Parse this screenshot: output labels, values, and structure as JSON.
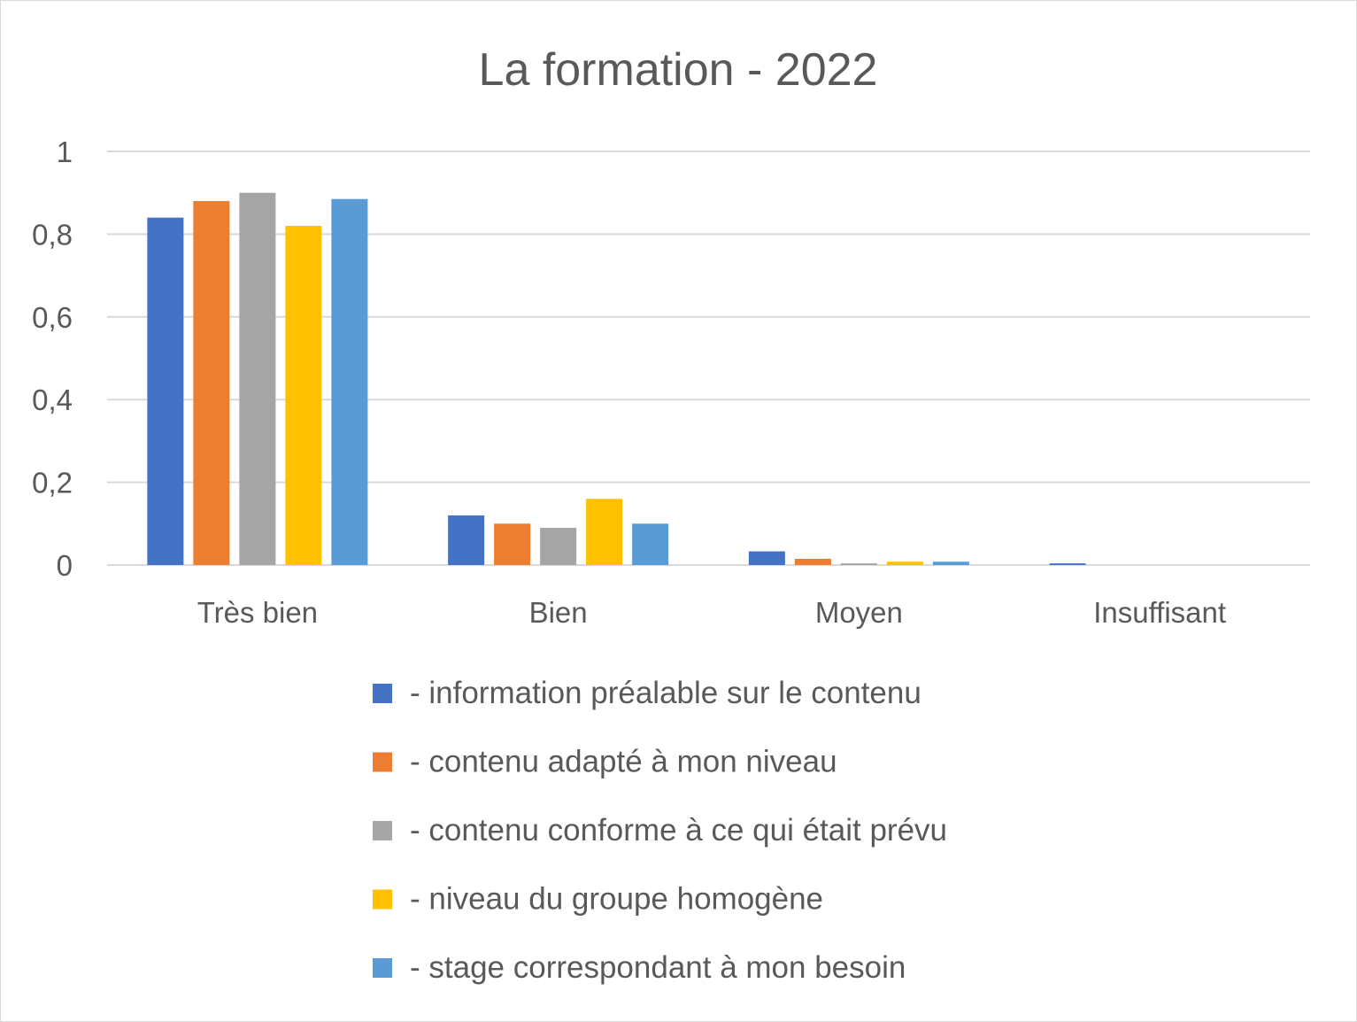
{
  "chart_data": {
    "type": "bar",
    "title": "La formation - 2022",
    "xlabel": "",
    "ylabel": "",
    "ylim": [
      0,
      1
    ],
    "yticks": [
      0,
      0.2,
      0.4,
      0.6,
      0.8,
      1
    ],
    "ytick_labels": [
      "0",
      "0,2",
      "0,4",
      "0,6",
      "0,8",
      "1"
    ],
    "categories": [
      "Très bien",
      "Bien",
      "Moyen",
      "Insuffisant"
    ],
    "grid": true,
    "legend_position": "bottom",
    "series": [
      {
        "name": "- information préalable sur le contenu",
        "color": "#4472C4",
        "values": [
          0.84,
          0.12,
          0.033,
          0.004
        ]
      },
      {
        "name": "- contenu adapté à mon niveau",
        "color": "#ED7D31",
        "values": [
          0.88,
          0.1,
          0.015,
          0.0
        ]
      },
      {
        "name": "- contenu conforme à ce qui était prévu",
        "color": "#A5A5A5",
        "values": [
          0.9,
          0.09,
          0.004,
          0.0
        ]
      },
      {
        "name": "- niveau du groupe homogène",
        "color": "#FFC000",
        "values": [
          0.82,
          0.16,
          0.008,
          0.0
        ]
      },
      {
        "name": "- stage correspondant à mon besoin",
        "color": "#5B9BD5",
        "values": [
          0.885,
          0.1,
          0.008,
          0.0
        ]
      }
    ]
  }
}
